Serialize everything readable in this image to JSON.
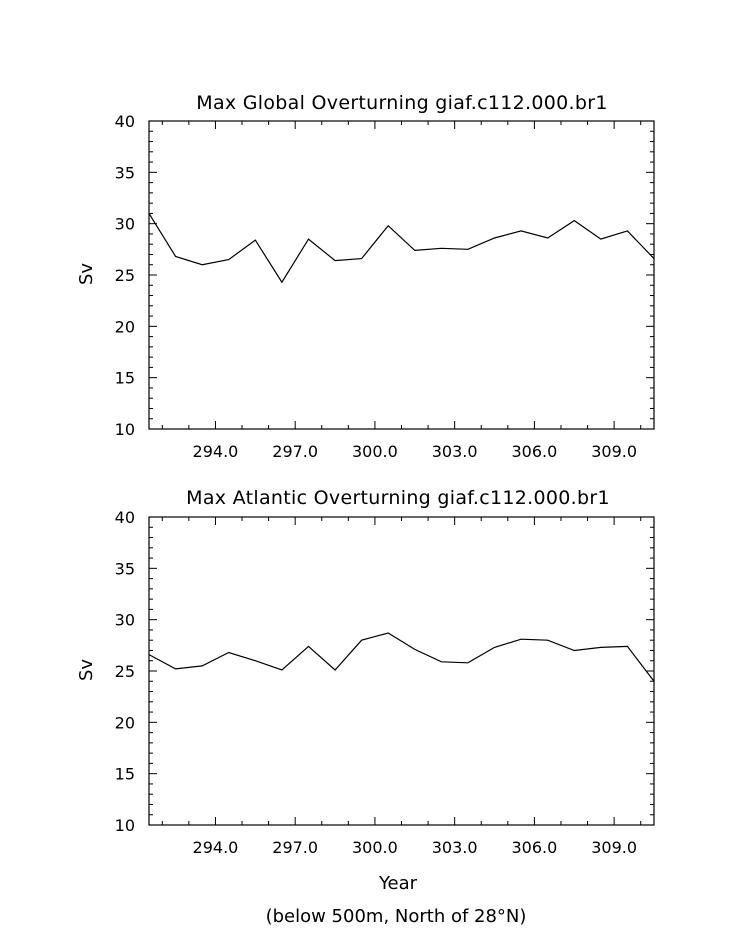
{
  "chart_data": [
    {
      "type": "line",
      "title": "Max Global Overturning giaf.c112.000.br1",
      "ylabel": "Sv",
      "xlabel": "",
      "ylim": [
        10,
        40
      ],
      "xlim": [
        291.5,
        310.5
      ],
      "yticks": [
        "10",
        "15",
        "20",
        "25",
        "30",
        "35",
        "40"
      ],
      "xticks": [
        "294.0",
        "297.0",
        "300.0",
        "303.0",
        "306.0",
        "309.0"
      ],
      "x": [
        291.5,
        292.5,
        293.5,
        294.5,
        295.5,
        296.5,
        297.5,
        298.5,
        299.5,
        300.5,
        301.5,
        302.5,
        303.5,
        304.5,
        305.5,
        306.5,
        307.5,
        308.5,
        309.5,
        310.5
      ],
      "values": [
        31.0,
        26.8,
        26.0,
        26.5,
        28.4,
        24.3,
        28.5,
        26.4,
        26.6,
        29.8,
        27.4,
        27.6,
        27.5,
        28.6,
        29.3,
        28.6,
        30.3,
        28.5,
        29.3,
        26.6
      ]
    },
    {
      "type": "line",
      "title": "Max Atlantic Overturning giaf.c112.000.br1",
      "ylabel": "Sv",
      "xlabel": "Year",
      "note": "(below 500m, North of 28°N)",
      "ylim": [
        10,
        40
      ],
      "xlim": [
        291.5,
        310.5
      ],
      "yticks": [
        "10",
        "15",
        "20",
        "25",
        "30",
        "35",
        "40"
      ],
      "xticks": [
        "294.0",
        "297.0",
        "300.0",
        "303.0",
        "306.0",
        "309.0"
      ],
      "x": [
        291.5,
        292.5,
        293.5,
        294.5,
        295.5,
        296.5,
        297.5,
        298.5,
        299.5,
        300.5,
        301.5,
        302.5,
        303.5,
        304.5,
        305.5,
        306.5,
        307.5,
        308.5,
        309.5,
        310.5
      ],
      "values": [
        26.6,
        25.2,
        25.5,
        26.8,
        26.0,
        25.1,
        27.4,
        25.1,
        28.0,
        28.7,
        27.1,
        25.9,
        25.8,
        27.3,
        28.1,
        28.0,
        27.0,
        27.3,
        27.4,
        24.0
      ]
    }
  ]
}
